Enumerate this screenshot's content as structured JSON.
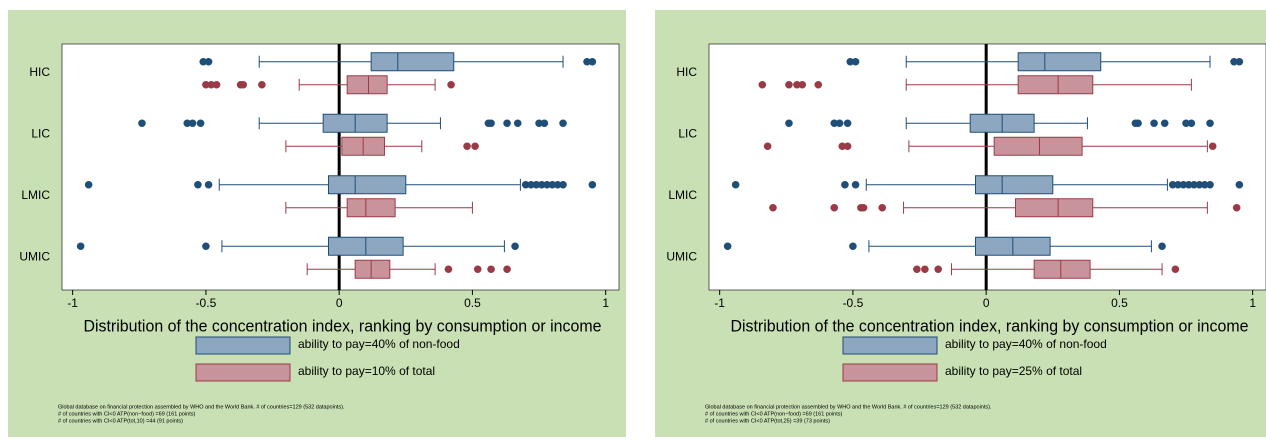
{
  "chart_data": [
    {
      "type": "box",
      "xlabel": "Distribution of the concentration index, ranking by consumption or income",
      "categories": [
        "HIC",
        "LIC",
        "LMIC",
        "UMIC"
      ],
      "xlim": [
        -1.04,
        1.05
      ],
      "xticks": [
        -1,
        -0.5,
        0,
        0.5,
        1
      ],
      "xline": 0,
      "series": [
        {
          "name": "ability to pay=40% of non-food",
          "color": "#8ea7c0",
          "edge": "#1f4e79",
          "boxes": [
            {
              "whisker_low": -0.3,
              "q1": 0.12,
              "median": 0.22,
              "q3": 0.43,
              "whisker_high": 0.84,
              "outliers": [
                -0.51,
                -0.49,
                0.93,
                0.95
              ]
            },
            {
              "whisker_low": -0.3,
              "q1": -0.06,
              "median": 0.06,
              "q3": 0.18,
              "whisker_high": 0.38,
              "outliers": [
                -0.74,
                -0.57,
                -0.55,
                -0.52,
                0.56,
                0.57,
                0.63,
                0.67,
                0.75,
                0.77,
                0.84
              ]
            },
            {
              "whisker_low": -0.45,
              "q1": -0.04,
              "median": 0.06,
              "q3": 0.25,
              "whisker_high": 0.68,
              "outliers": [
                -0.94,
                -0.53,
                -0.49,
                0.7,
                0.72,
                0.74,
                0.76,
                0.78,
                0.8,
                0.82,
                0.84,
                0.95
              ]
            },
            {
              "whisker_low": -0.44,
              "q1": -0.04,
              "median": 0.1,
              "q3": 0.24,
              "whisker_high": 0.62,
              "outliers": [
                -0.97,
                -0.5,
                0.66
              ]
            }
          ]
        },
        {
          "name": "ability to pay=10% of total",
          "color": "#c9939b",
          "edge": "#9b3a47",
          "boxes": [
            {
              "whisker_low": -0.15,
              "q1": 0.03,
              "median": 0.11,
              "q3": 0.18,
              "whisker_high": 0.36,
              "outliers": [
                -0.5,
                -0.48,
                -0.46,
                -0.37,
                -0.36,
                -0.29,
                0.42
              ]
            },
            {
              "whisker_low": -0.2,
              "q1": 0.01,
              "median": 0.09,
              "q3": 0.17,
              "whisker_high": 0.31,
              "outliers": [
                0.48,
                0.51
              ]
            },
            {
              "whisker_low": -0.2,
              "q1": 0.03,
              "median": 0.1,
              "q3": 0.21,
              "whisker_high": 0.5,
              "outliers": []
            },
            {
              "whisker_low": -0.12,
              "q1": 0.06,
              "median": 0.12,
              "q3": 0.19,
              "whisker_high": 0.36,
              "outliers": [
                0.41,
                0.52,
                0.57,
                0.63
              ]
            }
          ]
        }
      ],
      "notes": [
        "Global database on financial protection assembled by WHO and the World Bank. # of countries=129 (532 datapoints).",
        "# of countries with CI<0 ATP(non−food) =69 (161 points)",
        "# of countries with CI<0 ATP(tot,10) =44 (91 points)"
      ]
    },
    {
      "type": "box",
      "xlabel": "Distribution of the concentration index, ranking by consumption or income",
      "categories": [
        "HIC",
        "LIC",
        "LMIC",
        "UMIC"
      ],
      "xlim": [
        -1.04,
        1.05
      ],
      "xticks": [
        -1,
        -0.5,
        0,
        0.5,
        1
      ],
      "xline": 0,
      "series": [
        {
          "name": "ability to pay=40% of non-food",
          "color": "#8ea7c0",
          "edge": "#1f4e79",
          "boxes": [
            {
              "whisker_low": -0.3,
              "q1": 0.12,
              "median": 0.22,
              "q3": 0.43,
              "whisker_high": 0.84,
              "outliers": [
                -0.51,
                -0.49,
                0.93,
                0.95
              ]
            },
            {
              "whisker_low": -0.3,
              "q1": -0.06,
              "median": 0.06,
              "q3": 0.18,
              "whisker_high": 0.38,
              "outliers": [
                -0.74,
                -0.57,
                -0.55,
                -0.52,
                0.56,
                0.57,
                0.63,
                0.67,
                0.75,
                0.77,
                0.84
              ]
            },
            {
              "whisker_low": -0.45,
              "q1": -0.04,
              "median": 0.06,
              "q3": 0.25,
              "whisker_high": 0.68,
              "outliers": [
                -0.94,
                -0.53,
                -0.49,
                0.7,
                0.72,
                0.74,
                0.76,
                0.78,
                0.8,
                0.82,
                0.84,
                0.95
              ]
            },
            {
              "whisker_low": -0.44,
              "q1": -0.04,
              "median": 0.1,
              "q3": 0.24,
              "whisker_high": 0.62,
              "outliers": [
                -0.97,
                -0.5,
                0.66
              ]
            }
          ]
        },
        {
          "name": "ability to pay=25% of total",
          "color": "#c9939b",
          "edge": "#9b3a47",
          "boxes": [
            {
              "whisker_low": -0.3,
              "q1": 0.12,
              "median": 0.27,
              "q3": 0.4,
              "whisker_high": 0.77,
              "outliers": [
                -0.84,
                -0.74,
                -0.71,
                -0.69,
                -0.63
              ]
            },
            {
              "whisker_low": -0.29,
              "q1": 0.03,
              "median": 0.2,
              "q3": 0.36,
              "whisker_high": 0.83,
              "outliers": [
                -0.82,
                -0.54,
                -0.52,
                0.85
              ]
            },
            {
              "whisker_low": -0.31,
              "q1": 0.11,
              "median": 0.27,
              "q3": 0.4,
              "whisker_high": 0.83,
              "outliers": [
                -0.8,
                -0.57,
                -0.47,
                -0.46,
                -0.39,
                0.94
              ]
            },
            {
              "whisker_low": -0.13,
              "q1": 0.18,
              "median": 0.28,
              "q3": 0.39,
              "whisker_high": 0.66,
              "outliers": [
                -0.26,
                -0.23,
                -0.18,
                0.71
              ]
            }
          ]
        }
      ],
      "notes": [
        "Global database on financial protection assembled by WHO and the World Bank. # of countries=129 (532 datapoints).",
        "# of countries with CI<0 ATP(non−food) =69 (161 points)",
        "# of countries with CI<0 ATP(tot,25) =39 (73 points)"
      ]
    }
  ]
}
